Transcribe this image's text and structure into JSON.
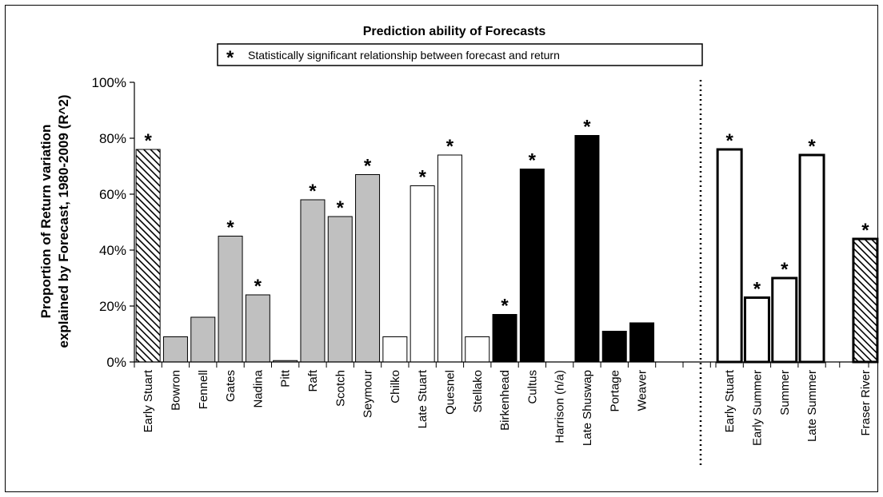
{
  "chart_data": {
    "type": "bar",
    "title": "Prediction ability of Forecasts",
    "legend": {
      "symbol": "*",
      "text": "Statistically significant relationship between forecast and return"
    },
    "ylabel_lines": [
      "Proportion of Return variation",
      "explained by Forecast, 1980-2009 (R^2)"
    ],
    "ylim": [
      0,
      100
    ],
    "y_ticks": [
      "0%",
      "20%",
      "40%",
      "60%",
      "80%",
      "100%"
    ],
    "grid": false,
    "significance_marker": "*",
    "groups": [
      {
        "bars": [
          {
            "label": "Early Stuart",
            "value": 76,
            "style": "hatched",
            "significant": true
          },
          {
            "label": "Bowron",
            "value": 9,
            "style": "gray",
            "significant": false
          },
          {
            "label": "Fennell",
            "value": 16,
            "style": "gray",
            "significant": false
          },
          {
            "label": "Gates",
            "value": 45,
            "style": "gray",
            "significant": true
          },
          {
            "label": "Nadina",
            "value": 24,
            "style": "gray",
            "significant": true
          },
          {
            "label": "Pitt",
            "value": 0.5,
            "style": "gray",
            "significant": false
          },
          {
            "label": "Raft",
            "value": 58,
            "style": "gray",
            "significant": true
          },
          {
            "label": "Scotch",
            "value": 52,
            "style": "gray",
            "significant": true
          },
          {
            "label": "Seymour",
            "value": 67,
            "style": "gray",
            "significant": true
          },
          {
            "label": "Chilko",
            "value": 9,
            "style": "white",
            "significant": false
          },
          {
            "label": "Late Stuart",
            "value": 63,
            "style": "white",
            "significant": true
          },
          {
            "label": "Quesnel",
            "value": 74,
            "style": "white",
            "significant": true
          },
          {
            "label": "Stellako",
            "value": 9,
            "style": "white",
            "significant": false
          },
          {
            "label": "Birkenhead",
            "value": 17,
            "style": "black",
            "significant": true
          },
          {
            "label": "Cultus",
            "value": 69,
            "style": "black",
            "significant": true
          },
          {
            "label": "Harrison (n/a)",
            "value": null,
            "style": "none",
            "significant": false
          },
          {
            "label": "Late Shuswap",
            "value": 81,
            "style": "black",
            "significant": true
          },
          {
            "label": "Portage",
            "value": 11,
            "style": "black",
            "significant": false
          },
          {
            "label": "Weaver",
            "value": 14,
            "style": "black",
            "significant": false
          }
        ]
      },
      {
        "bars": [
          {
            "label": "Early Stuart",
            "value": 76,
            "style": "white-thick",
            "significant": true
          },
          {
            "label": "Early Summer",
            "value": 23,
            "style": "white-thick",
            "significant": true
          },
          {
            "label": "Summer",
            "value": 30,
            "style": "white-thick",
            "significant": true
          },
          {
            "label": "Late Summer",
            "value": 74,
            "style": "white-thick",
            "significant": true
          },
          {
            "label": "Fraser River",
            "value": 44,
            "style": "hatched-thick",
            "significant": true
          }
        ]
      }
    ],
    "colors": {
      "gray": "#c0c0c0",
      "black": "#000000",
      "white": "#ffffff",
      "hatch_line": "#000000"
    }
  }
}
